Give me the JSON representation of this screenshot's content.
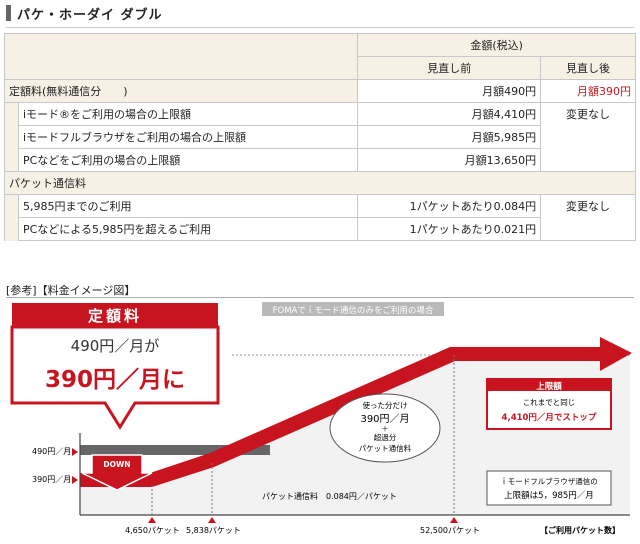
{
  "page": {
    "title": "パケ・ホーダイ ダブル"
  },
  "table": {
    "header_group": "金額(税込)",
    "col_before": "見直し前",
    "col_after": "見直し後",
    "flat_label": "定額料(無料通信分　　)",
    "flat_before": "月額490円",
    "flat_after": "月額390円",
    "limit_rows": [
      {
        "label": "iモード®をご利用の場合の上限額",
        "before": "月額4,410円"
      },
      {
        "label": "iモードフルブラウザをご利用の場合の上限額",
        "before": "月額5,985円"
      },
      {
        "label": "PCなどをご利用の場合の上限額",
        "before": "月額13,650円"
      }
    ],
    "limit_after": "変更なし",
    "packet_label": "パケット通信料",
    "packet_rows": [
      {
        "label": "5,985円までのご利用",
        "before": "1パケットあたり0.084円"
      },
      {
        "label": "PCなどによる5,985円を超えるご利用",
        "before": "1パケットあたり0.021円"
      }
    ],
    "packet_after": "変更なし"
  },
  "reference": {
    "label": "[参考]【料金イメージ図】"
  },
  "illustration": {
    "banner": "FOMAでｉモード通信のみをご利用の場合",
    "flat_heading": "定額料",
    "flat_old": "490円／月が",
    "flat_new": "390円／月に",
    "down_label": "DOWN",
    "y_labels": [
      "490円／月",
      "390円／月"
    ],
    "bubble_lines": [
      "使った分だけ",
      "390円／月",
      "＋",
      "超過分",
      "パケット通信料"
    ],
    "packet_rate": "パケット通信料　0.084円／パケット",
    "limit_heading": "上限額",
    "limit_line1": "これまでと同じ",
    "limit_line2": "4,410円／月でストップ",
    "browser_line1": "ｉモードフルブラウザ通信の",
    "browser_line2": "上限額は5，985円／月",
    "x_labels": [
      "4,650パケット",
      "5,838パケット",
      "52,500パケット"
    ],
    "x_axis_label": "【ご利用パケット数】",
    "accent": "#c8141e"
  }
}
